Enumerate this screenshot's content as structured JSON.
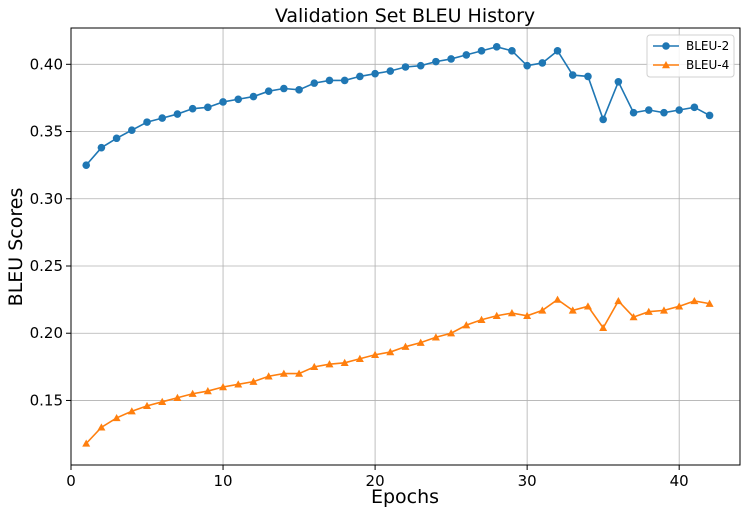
{
  "chart_data": {
    "type": "line",
    "title": "Validation Set BLEU History",
    "xlabel": "Epochs",
    "ylabel": "BLEU Scores",
    "xlim": [
      0,
      44
    ],
    "ylim": [
      0.102,
      0.427
    ],
    "xticks": [
      0,
      10,
      20,
      30,
      40
    ],
    "yticks": [
      0.15,
      0.2,
      0.25,
      0.3,
      0.35,
      0.4
    ],
    "grid": true,
    "legend_position": "top-right",
    "x": [
      1,
      2,
      3,
      4,
      5,
      6,
      7,
      8,
      9,
      10,
      11,
      12,
      13,
      14,
      15,
      16,
      17,
      18,
      19,
      20,
      21,
      22,
      23,
      24,
      25,
      26,
      27,
      28,
      29,
      30,
      31,
      32,
      33,
      34,
      35,
      36,
      37,
      38,
      39,
      40,
      41,
      42
    ],
    "series": [
      {
        "name": "BLEU-2",
        "color": "#1f77b4",
        "marker": "circle",
        "values": [
          0.325,
          0.338,
          0.345,
          0.351,
          0.357,
          0.36,
          0.363,
          0.367,
          0.368,
          0.372,
          0.374,
          0.376,
          0.38,
          0.382,
          0.381,
          0.386,
          0.388,
          0.388,
          0.391,
          0.393,
          0.395,
          0.398,
          0.399,
          0.402,
          0.404,
          0.407,
          0.41,
          0.413,
          0.41,
          0.399,
          0.401,
          0.41,
          0.392,
          0.391,
          0.359,
          0.387,
          0.364,
          0.366,
          0.364,
          0.366,
          0.368,
          0.362
        ]
      },
      {
        "name": "BLEU-4",
        "color": "#ff7f0e",
        "marker": "triangle",
        "values": [
          0.118,
          0.13,
          0.137,
          0.142,
          0.146,
          0.149,
          0.152,
          0.155,
          0.157,
          0.16,
          0.162,
          0.164,
          0.168,
          0.17,
          0.17,
          0.175,
          0.177,
          0.178,
          0.181,
          0.184,
          0.186,
          0.19,
          0.193,
          0.197,
          0.2,
          0.206,
          0.21,
          0.213,
          0.215,
          0.213,
          0.217,
          0.225,
          0.217,
          0.22,
          0.204,
          0.224,
          0.212,
          0.216,
          0.217,
          0.22,
          0.224,
          0.222
        ]
      }
    ]
  }
}
